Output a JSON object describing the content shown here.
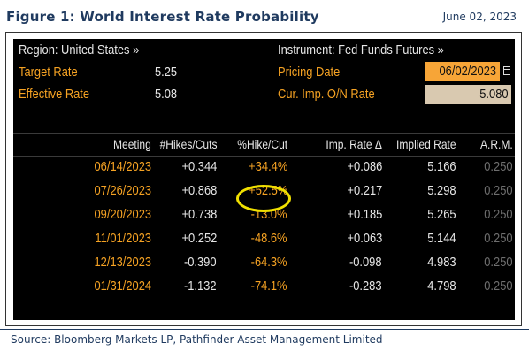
{
  "figure": {
    "title": "Figure 1: World Interest Rate Probability",
    "date": "June 02, 2023",
    "source": "Source: Bloomberg Markets LP, Pathfinder Asset Management Limited"
  },
  "panel": {
    "region": "Region: United States »",
    "instrument": "Instrument: Fed Funds Futures »",
    "target_rate_label": "Target Rate",
    "target_rate_value": "5.25",
    "effective_rate_label": "Effective Rate",
    "effective_rate_value": "5.08",
    "pricing_date_label": "Pricing Date",
    "pricing_date_value": "06/02/2023",
    "cur_imp_label": "Cur. Imp. O/N Rate",
    "cur_imp_value": "5.080",
    "calendar_icon": "calendar-icon"
  },
  "table": {
    "headers": [
      "Meeting",
      "#Hikes/Cuts",
      "%Hike/Cut",
      "Imp. Rate Δ",
      "Implied Rate",
      "A.R.M."
    ],
    "rows": [
      {
        "meeting": "06/14/2023",
        "hikes": "+0.344",
        "pct": "+34.4%",
        "imp_delta": "+0.086",
        "implied": "5.166",
        "arm": "0.250"
      },
      {
        "meeting": "07/26/2023",
        "hikes": "+0.868",
        "pct": "+52.5%",
        "imp_delta": "+0.217",
        "implied": "5.298",
        "arm": "0.250"
      },
      {
        "meeting": "09/20/2023",
        "hikes": "+0.738",
        "pct": "-13.0%",
        "imp_delta": "+0.185",
        "implied": "5.265",
        "arm": "0.250"
      },
      {
        "meeting": "11/01/2023",
        "hikes": "+0.252",
        "pct": "-48.6%",
        "imp_delta": "+0.063",
        "implied": "5.144",
        "arm": "0.250"
      },
      {
        "meeting": "12/13/2023",
        "hikes": "-0.390",
        "pct": "-64.3%",
        "imp_delta": "-0.098",
        "implied": "4.983",
        "arm": "0.250"
      },
      {
        "meeting": "01/31/2024",
        "hikes": "-1.132",
        "pct": "-74.1%",
        "imp_delta": "-0.283",
        "implied": "4.798",
        "arm": "0.250"
      }
    ]
  },
  "colors": {
    "terminal_bg": "#000000",
    "amber": "#f5a223",
    "highlight": "#f0e000",
    "title_navy": "#1f3a5f"
  }
}
